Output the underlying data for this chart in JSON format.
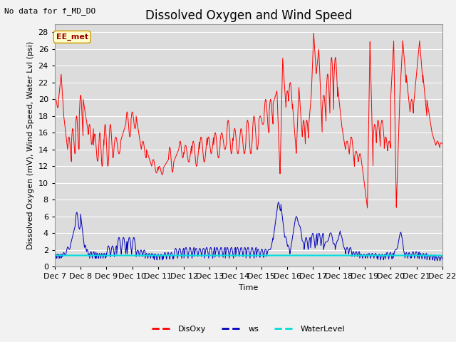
{
  "title": "Dissolved Oxygen and Wind Speed",
  "top_left_text": "No data for f_MD_DO",
  "annotation_box": "EE_met",
  "xlabel": "Time",
  "ylabel": "Dissolved Oxygen (mV), Wind Speed, Water Lvl (psi)",
  "xlim_days": [
    7,
    22
  ],
  "ylim": [
    0,
    29
  ],
  "yticks": [
    0,
    2,
    4,
    6,
    8,
    10,
    12,
    14,
    16,
    18,
    20,
    22,
    24,
    26,
    28
  ],
  "xtick_labels": [
    "Dec 7",
    "Dec 8",
    "Dec 9",
    "Dec 10",
    "Dec 11",
    "Dec 12",
    "Dec 13",
    "Dec 14",
    "Dec 15",
    "Dec 16",
    "Dec 17",
    "Dec 18",
    "Dec 19",
    "Dec 20",
    "Dec 21",
    "Dec 22"
  ],
  "xtick_positions": [
    7,
    8,
    9,
    10,
    11,
    12,
    13,
    14,
    15,
    16,
    17,
    18,
    19,
    20,
    21,
    22
  ],
  "disoxy_color": "#ff0000",
  "ws_color": "#0000bb",
  "waterlevel_color": "#00dddd",
  "fig_facecolor": "#f2f2f2",
  "plot_bg_color": "#dcdcdc",
  "grid_color": "#ffffff",
  "legend_labels": [
    "DisOxy",
    "ws",
    "WaterLevel"
  ],
  "title_fontsize": 12,
  "label_fontsize": 8,
  "tick_fontsize": 8
}
